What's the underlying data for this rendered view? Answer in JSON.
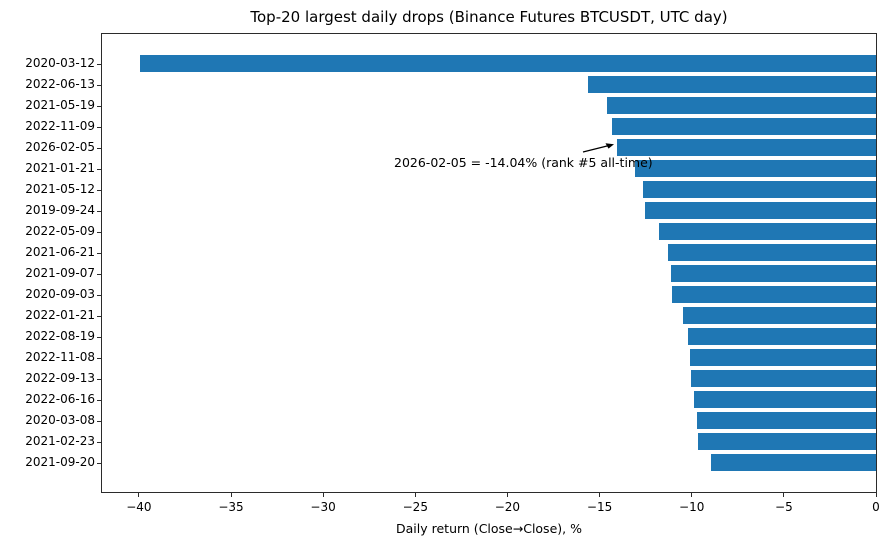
{
  "chart_data": {
    "type": "bar",
    "orientation": "horizontal",
    "title": "Top-20 largest daily drops (Binance Futures BTCUSDT, UTC day)",
    "xlabel": "Daily return (Close→Close), %",
    "ylabel": "",
    "categories": [
      "2020-03-12",
      "2022-06-13",
      "2021-05-19",
      "2022-11-09",
      "2026-02-05",
      "2021-01-21",
      "2021-05-12",
      "2019-09-24",
      "2022-05-09",
      "2021-06-21",
      "2021-09-07",
      "2020-09-03",
      "2022-01-21",
      "2022-08-19",
      "2022-11-08",
      "2022-09-13",
      "2022-06-16",
      "2020-03-08",
      "2021-02-23",
      "2021-09-20"
    ],
    "values": [
      -39.96,
      -15.61,
      -14.62,
      -14.34,
      -14.04,
      -13.08,
      -12.66,
      -12.54,
      -11.78,
      -11.31,
      -11.11,
      -11.07,
      -10.46,
      -10.23,
      -10.1,
      -10.06,
      -9.87,
      -9.74,
      -9.65,
      -8.97
    ],
    "xlim": [
      -42,
      0
    ],
    "xticks": [
      -40,
      -35,
      -30,
      -25,
      -20,
      -15,
      -10,
      -5,
      0
    ],
    "bar_color": "#1f77b4",
    "grid": false,
    "legend": null,
    "annotation": {
      "text": "2026-02-05 = -14.04% (rank #5 all-time)",
      "target_category": "2026-02-05",
      "target_value": -14.04
    }
  }
}
